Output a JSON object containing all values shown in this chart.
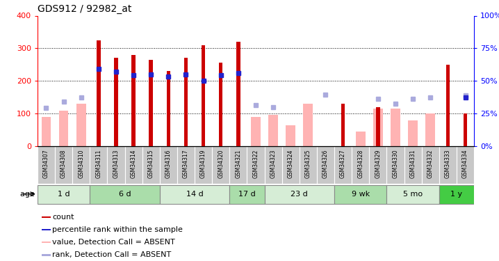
{
  "title": "GDS912 / 92982_at",
  "samples": [
    "GSM34307",
    "GSM34308",
    "GSM34310",
    "GSM34311",
    "GSM34313",
    "GSM34314",
    "GSM34315",
    "GSM34316",
    "GSM34317",
    "GSM34319",
    "GSM34320",
    "GSM34321",
    "GSM34322",
    "GSM34323",
    "GSM34324",
    "GSM34325",
    "GSM34326",
    "GSM34327",
    "GSM34328",
    "GSM34329",
    "GSM34330",
    "GSM34331",
    "GSM34332",
    "GSM34333",
    "GSM34334"
  ],
  "count": [
    null,
    null,
    null,
    325,
    270,
    280,
    265,
    230,
    270,
    310,
    255,
    320,
    null,
    null,
    null,
    null,
    null,
    130,
    null,
    120,
    null,
    null,
    null,
    250,
    100
  ],
  "rank_val": [
    null,
    null,
    null,
    237,
    228,
    218,
    220,
    213,
    220,
    200,
    217,
    225,
    null,
    null,
    null,
    null,
    null,
    null,
    null,
    null,
    null,
    null,
    null,
    null,
    150
  ],
  "absent_value": [
    90,
    108,
    130,
    null,
    null,
    null,
    null,
    null,
    null,
    null,
    null,
    null,
    90,
    95,
    65,
    130,
    null,
    null,
    45,
    115,
    115,
    80,
    100,
    null,
    null
  ],
  "absent_rank": [
    118,
    136,
    150,
    null,
    null,
    null,
    null,
    null,
    null,
    null,
    null,
    null,
    125,
    120,
    null,
    null,
    158,
    null,
    null,
    145,
    130,
    145,
    150,
    null,
    155
  ],
  "age_groups": [
    {
      "label": "1 d",
      "start": 0,
      "end": 3,
      "color": "#d6edd6"
    },
    {
      "label": "6 d",
      "start": 3,
      "end": 7,
      "color": "#aaddaa"
    },
    {
      "label": "14 d",
      "start": 7,
      "end": 11,
      "color": "#d6edd6"
    },
    {
      "label": "17 d",
      "start": 11,
      "end": 13,
      "color": "#aaddaa"
    },
    {
      "label": "23 d",
      "start": 13,
      "end": 17,
      "color": "#d6edd6"
    },
    {
      "label": "9 wk",
      "start": 17,
      "end": 20,
      "color": "#aaddaa"
    },
    {
      "label": "5 mo",
      "start": 20,
      "end": 23,
      "color": "#d6edd6"
    },
    {
      "label": "1 y",
      "start": 23,
      "end": 25,
      "color": "#44cc44"
    }
  ],
  "ylim_left": [
    0,
    400
  ],
  "ylim_right": [
    0,
    100
  ],
  "yticks_left": [
    0,
    100,
    200,
    300,
    400
  ],
  "yticks_right": [
    0,
    25,
    50,
    75,
    100
  ],
  "bar_color_count": "#cc0000",
  "bar_color_rank": "#2222cc",
  "bar_color_absent_value": "#ffb3b3",
  "bar_color_absent_rank": "#aaaadd",
  "grid_color": "black"
}
